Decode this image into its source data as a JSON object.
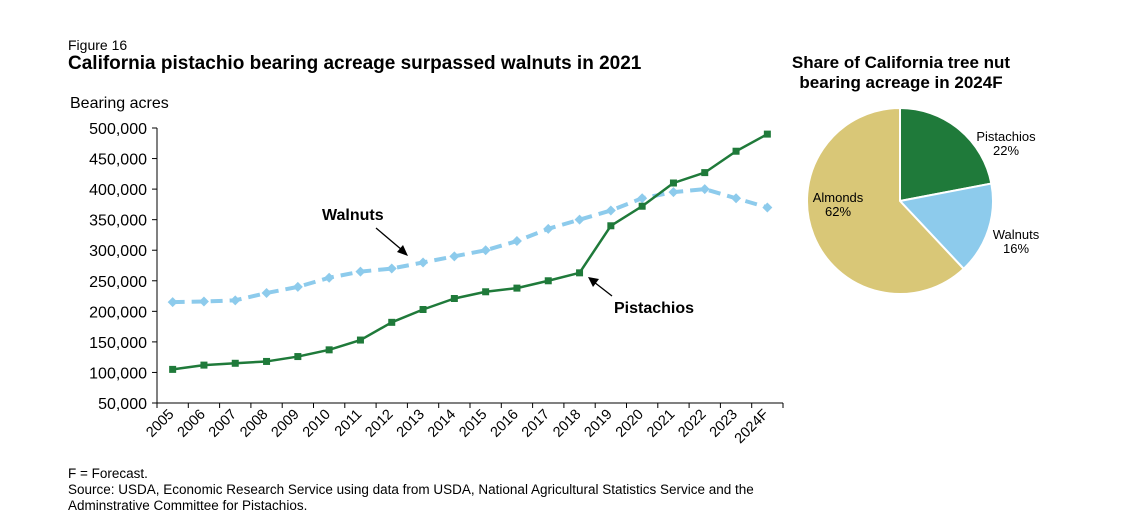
{
  "figure_label": "Figure 16",
  "title": "California pistachio bearing acreage surpassed walnuts in 2021",
  "footnote": "F = Forecast.",
  "source_line1": "Source: USDA, Economic Research Service using data from USDA, National Agricultural Statistics Service and the",
  "source_line2": "Adminstrative Committee for Pistachios.",
  "colors": {
    "pistachios": "#1f7a3a",
    "walnuts": "#8dcbec",
    "almonds": "#d9c777"
  },
  "chart_data": [
    {
      "type": "line",
      "title": "California pistachio bearing acreage surpassed walnuts in 2021",
      "ylabel": "Bearing acres",
      "xlabel": "",
      "ylim": [
        50000,
        500000
      ],
      "yticks": [
        50000,
        100000,
        150000,
        200000,
        250000,
        300000,
        350000,
        400000,
        450000,
        500000
      ],
      "ytick_labels": [
        "50,000",
        "100,000",
        "150,000",
        "200,000",
        "250,000",
        "300,000",
        "350,000",
        "400,000",
        "450,000",
        "500,000"
      ],
      "categories": [
        "2005",
        "2006",
        "2007",
        "2008",
        "2009",
        "2010",
        "2011",
        "2012",
        "2013",
        "2014",
        "2015",
        "2016",
        "2017",
        "2018",
        "2019",
        "2020",
        "2021",
        "2022",
        "2023",
        "2024F"
      ],
      "series": [
        {
          "name": "Walnuts",
          "style": "dashed",
          "marker": "diamond",
          "values": [
            215000,
            216000,
            218000,
            230000,
            240000,
            255000,
            265000,
            270000,
            280000,
            290000,
            300000,
            315000,
            335000,
            350000,
            365000,
            385000,
            395000,
            400000,
            385000,
            370000
          ]
        },
        {
          "name": "Pistachios",
          "style": "solid",
          "marker": "square",
          "values": [
            105000,
            112000,
            115000,
            118000,
            126000,
            137000,
            153000,
            182000,
            203000,
            221000,
            232000,
            238000,
            250000,
            263000,
            340000,
            372000,
            410000,
            427000,
            462000,
            490000
          ]
        }
      ],
      "annotations": [
        {
          "text": "Walnuts",
          "target_series": "Walnuts"
        },
        {
          "text": "Pistachios",
          "target_series": "Pistachios"
        }
      ]
    },
    {
      "type": "pie",
      "title": "Share of California tree nut bearing acreage in 2024F",
      "title_line1": "Share of California tree nut",
      "title_line2": "bearing acreage in 2024F",
      "slices": [
        {
          "label": "Pistachios",
          "value": 22,
          "display": "22%"
        },
        {
          "label": "Walnuts",
          "value": 16,
          "display": "16%"
        },
        {
          "label": "Almonds",
          "value": 62,
          "display": "62%"
        }
      ]
    }
  ]
}
